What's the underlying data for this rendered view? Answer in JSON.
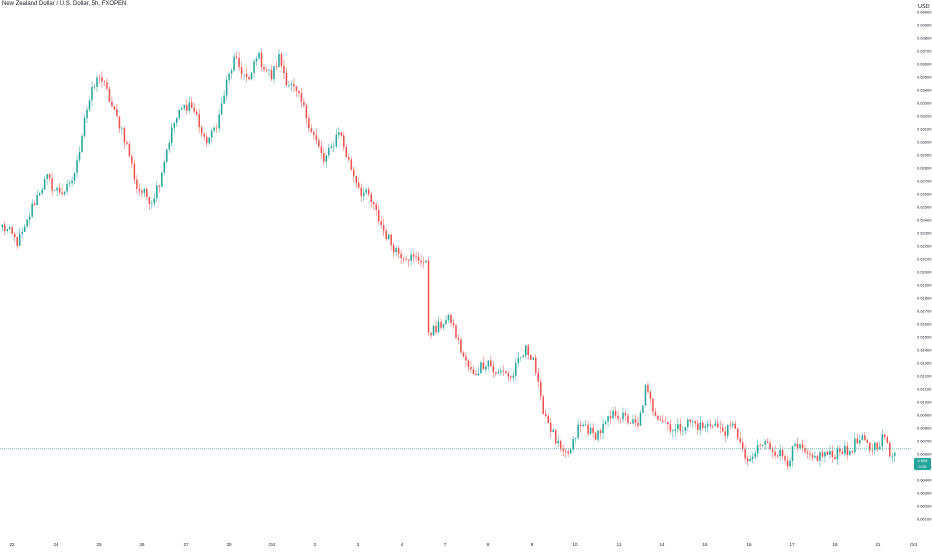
{
  "chart_data": {
    "type": "candlestick",
    "title": "New Zealand Dollar / U.S. Dollar, 5h, FXOPEN",
    "currency": "USD",
    "x_ticks": [
      "22",
      "24",
      "25",
      "26",
      "27",
      "30",
      "Oct",
      "2",
      "3",
      "4",
      "7",
      "8",
      "9",
      "10",
      "11",
      "14",
      "15",
      "16",
      "17",
      "18",
      "21",
      "Oct",
      "Oct"
    ],
    "y_ticks": [
      "0.64000",
      "0.63900",
      "0.63800",
      "0.63700",
      "0.63600",
      "0.63500",
      "0.63400",
      "0.63300",
      "0.63200",
      "0.63100",
      "0.63000",
      "0.62900",
      "0.62800",
      "0.62700",
      "0.62600",
      "0.62500",
      "0.62400",
      "0.62300",
      "0.62200",
      "0.62100",
      "0.62000",
      "0.61900",
      "0.61800",
      "0.61700",
      "0.61600",
      "0.61500",
      "0.61400",
      "0.61300",
      "0.61200",
      "0.61100",
      "0.61000",
      "0.60900",
      "0.60800",
      "0.60700",
      "0.60600",
      "0.60500",
      "0.60400",
      "0.60300",
      "0.60200",
      "0.60100"
    ],
    "ylim": [
      0.601,
      0.64
    ],
    "grid": false,
    "colors": {
      "up": "#26a69a",
      "down": "#ef5350",
      "axis_text": "#131722",
      "price_line": "#26a69a"
    },
    "current_price": 0.6064,
    "current_price_label": "0.606\n0:00",
    "waypoints": [
      [
        0,
        0.6235
      ],
      [
        3,
        0.623
      ],
      [
        6,
        0.6223
      ],
      [
        9,
        0.6232
      ],
      [
        12,
        0.625
      ],
      [
        15,
        0.6263
      ],
      [
        18,
        0.6272
      ],
      [
        21,
        0.6263
      ],
      [
        24,
        0.6262
      ],
      [
        27,
        0.6265
      ],
      [
        30,
        0.6283
      ],
      [
        33,
        0.632
      ],
      [
        36,
        0.6338
      ],
      [
        39,
        0.6352
      ],
      [
        42,
        0.6338
      ],
      [
        45,
        0.6322
      ],
      [
        48,
        0.631
      ],
      [
        51,
        0.629
      ],
      [
        54,
        0.6265
      ],
      [
        57,
        0.626
      ],
      [
        60,
        0.6255
      ],
      [
        63,
        0.627
      ],
      [
        66,
        0.6295
      ],
      [
        69,
        0.6315
      ],
      [
        72,
        0.6325
      ],
      [
        75,
        0.633
      ],
      [
        78,
        0.632
      ],
      [
        81,
        0.63
      ],
      [
        84,
        0.6305
      ],
      [
        87,
        0.632
      ],
      [
        90,
        0.6345
      ],
      [
        93,
        0.6363
      ],
      [
        96,
        0.6355
      ],
      [
        99,
        0.6345
      ],
      [
        102,
        0.6368
      ],
      [
        105,
        0.6358
      ],
      [
        108,
        0.635
      ],
      [
        111,
        0.6365
      ],
      [
        114,
        0.6348
      ],
      [
        117,
        0.634
      ],
      [
        120,
        0.633
      ],
      [
        123,
        0.6315
      ],
      [
        126,
        0.63
      ],
      [
        129,
        0.6285
      ],
      [
        132,
        0.6295
      ],
      [
        135,
        0.631
      ],
      [
        138,
        0.629
      ],
      [
        141,
        0.6275
      ],
      [
        144,
        0.6262
      ],
      [
        147,
        0.6258
      ],
      [
        150,
        0.6245
      ],
      [
        153,
        0.6232
      ],
      [
        156,
        0.6222
      ],
      [
        159,
        0.6215
      ],
      [
        162,
        0.6213
      ],
      [
        165,
        0.621
      ],
      [
        168,
        0.621
      ],
      [
        170,
        0.6205
      ],
      [
        171,
        0.6155
      ],
      [
        174,
        0.6155
      ],
      [
        177,
        0.6162
      ],
      [
        180,
        0.6163
      ],
      [
        183,
        0.6145
      ],
      [
        186,
        0.613
      ],
      [
        189,
        0.612
      ],
      [
        192,
        0.6128
      ],
      [
        195,
        0.6132
      ],
      [
        198,
        0.612
      ],
      [
        201,
        0.6125
      ],
      [
        204,
        0.6118
      ],
      [
        207,
        0.613
      ],
      [
        210,
        0.614
      ],
      [
        213,
        0.6135
      ],
      [
        216,
        0.61
      ],
      [
        219,
        0.6085
      ],
      [
        222,
        0.607
      ],
      [
        225,
        0.6058
      ],
      [
        228,
        0.6062
      ],
      [
        231,
        0.608
      ],
      [
        234,
        0.6082
      ],
      [
        237,
        0.6074
      ],
      [
        240,
        0.6078
      ],
      [
        243,
        0.6085
      ],
      [
        246,
        0.6092
      ],
      [
        249,
        0.6088
      ],
      [
        252,
        0.6085
      ],
      [
        255,
        0.608
      ],
      [
        258,
        0.611
      ],
      [
        261,
        0.6095
      ],
      [
        264,
        0.6088
      ],
      [
        267,
        0.6083
      ],
      [
        270,
        0.6078
      ],
      [
        273,
        0.6082
      ],
      [
        276,
        0.6085
      ],
      [
        279,
        0.6082
      ],
      [
        282,
        0.608
      ],
      [
        285,
        0.6085
      ],
      [
        288,
        0.6078
      ],
      [
        291,
        0.6078
      ],
      [
        294,
        0.6082
      ],
      [
        297,
        0.606
      ],
      [
        300,
        0.6052
      ],
      [
        303,
        0.6065
      ],
      [
        306,
        0.6068
      ],
      [
        309,
        0.6064
      ],
      [
        312,
        0.606
      ],
      [
        315,
        0.6055
      ],
      [
        318,
        0.6065
      ],
      [
        321,
        0.6062
      ],
      [
        324,
        0.6055
      ],
      [
        327,
        0.6058
      ],
      [
        330,
        0.606
      ],
      [
        333,
        0.6058
      ],
      [
        336,
        0.6065
      ],
      [
        339,
        0.606
      ],
      [
        342,
        0.6068
      ],
      [
        345,
        0.607
      ],
      [
        348,
        0.6064
      ],
      [
        351,
        0.6068
      ],
      [
        354,
        0.6074
      ],
      [
        356,
        0.6057
      ],
      [
        358,
        0.6064
      ]
    ]
  }
}
